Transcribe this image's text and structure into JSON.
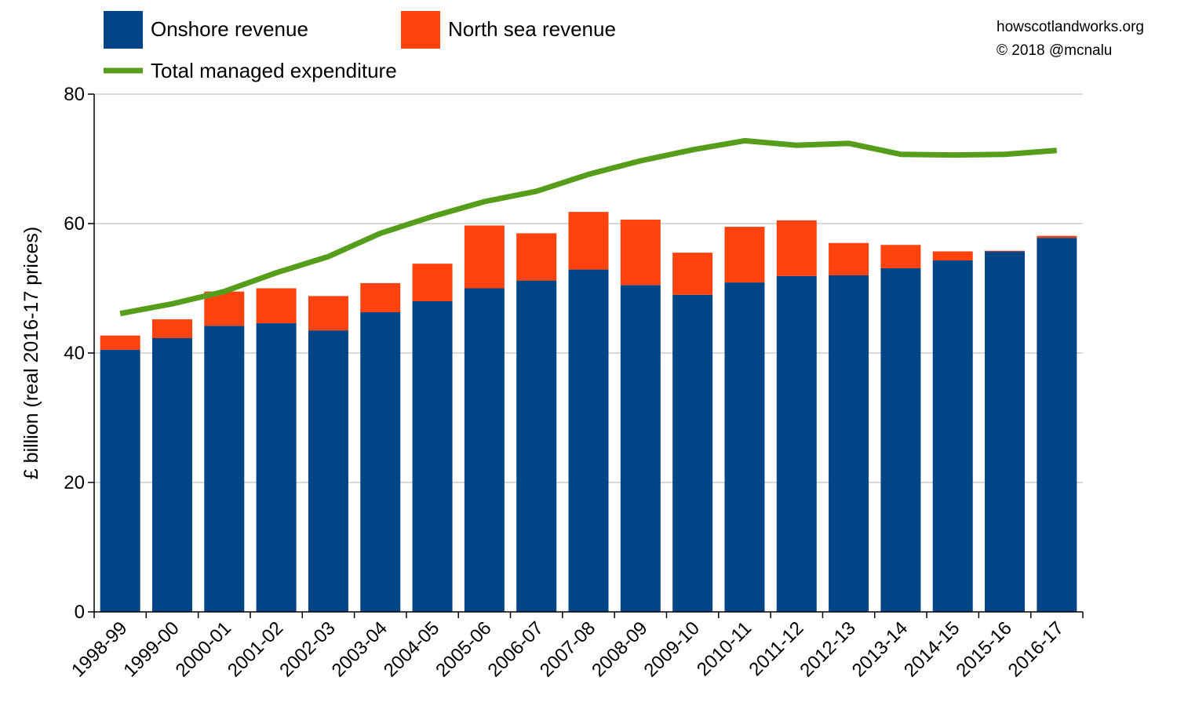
{
  "credit": {
    "site": "howscotlandworks.org",
    "copyright": "© 2018  @mcnalu"
  },
  "colors": {
    "onshore": "#004586",
    "north_sea": "#ff420e",
    "expenditure": "#579d1c"
  },
  "chart_data": {
    "type": "bar",
    "stacked": true,
    "categories": [
      "1998-99",
      "1999-00",
      "2000-01",
      "2001-02",
      "2002-03",
      "2003-04",
      "2004-05",
      "2005-06",
      "2006-07",
      "2007-08",
      "2008-09",
      "2009-10",
      "2010-11",
      "2011-12",
      "2012-13",
      "2013-14",
      "2014-15",
      "2015-16",
      "2016-17"
    ],
    "series": [
      {
        "name": "Onshore revenue",
        "kind": "bar",
        "values": [
          40.5,
          42.3,
          44.2,
          44.6,
          43.5,
          46.3,
          48.0,
          50.0,
          51.2,
          52.9,
          50.5,
          49.0,
          50.9,
          51.9,
          52.0,
          53.1,
          54.3,
          55.7,
          57.8
        ]
      },
      {
        "name": "North sea revenue",
        "kind": "bar",
        "values": [
          2.2,
          2.9,
          5.3,
          5.4,
          5.3,
          4.5,
          5.8,
          9.7,
          7.3,
          8.9,
          10.1,
          6.5,
          8.6,
          8.6,
          5.0,
          3.6,
          1.4,
          0.1,
          0.3
        ]
      },
      {
        "name": "Total managed expenditure",
        "kind": "line",
        "values": [
          46.1,
          47.6,
          49.5,
          52.4,
          54.9,
          58.5,
          61.1,
          63.4,
          65.0,
          67.6,
          69.7,
          71.4,
          72.8,
          72.1,
          72.4,
          70.7,
          70.6,
          70.7,
          71.3
        ]
      }
    ],
    "ylabel": "£ billion (real 2016-17 prices)",
    "xlabel": "",
    "ylim": [
      0,
      80
    ],
    "yticks": [
      0,
      20,
      40,
      60,
      80
    ],
    "grid": true,
    "legend_position": "top-left"
  }
}
